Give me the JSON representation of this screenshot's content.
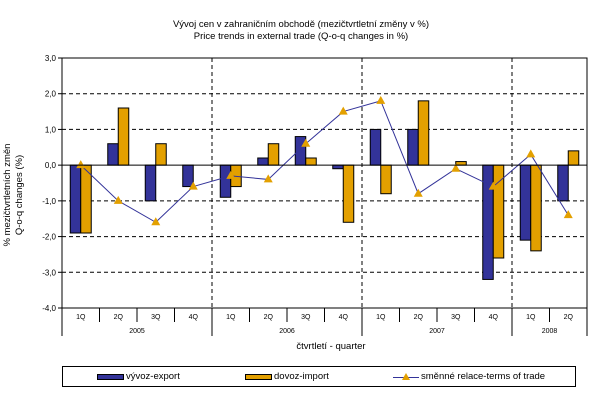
{
  "chart_data": {
    "type": "bar",
    "title": "Vývoj cen v zahraničním obchodě (mezičtvrtletní změny v %)",
    "subtitle": "Price trends in external trade (Q-o-q changes in %)",
    "ylabel_line1": "% mezičtvrtletních změn",
    "ylabel_line2": "Q-o-q changes (%)",
    "xlabel": "čtvrtletí - quarter",
    "ylim": [
      -4.0,
      3.0
    ],
    "yticks": [
      3.0,
      2.0,
      1.0,
      0.0,
      -1.0,
      -2.0,
      -3.0,
      -4.0
    ],
    "ytick_labels": [
      "3,0",
      "2,0",
      "1,0",
      "0,0",
      "-1,0",
      "-2,0",
      "-3,0",
      "-4,0"
    ],
    "grid": "horizontal dashed; vertical dashed year separators",
    "categories": [
      "1Q",
      "2Q",
      "3Q",
      "4Q",
      "1Q",
      "2Q",
      "3Q",
      "4Q",
      "1Q",
      "2Q",
      "3Q",
      "4Q",
      "1Q",
      "2Q"
    ],
    "groups": [
      {
        "label": "2005",
        "count": 4
      },
      {
        "label": "2006",
        "count": 4
      },
      {
        "label": "2007",
        "count": 4
      },
      {
        "label": "2008",
        "count": 2
      }
    ],
    "series": [
      {
        "name": "vývoz-export",
        "kind": "bar",
        "color": "#333399",
        "values": [
          -1.9,
          0.6,
          -1.0,
          -0.6,
          -0.9,
          0.2,
          0.8,
          -0.1,
          1.0,
          1.0,
          0.0,
          -3.2,
          -2.1,
          -1.0
        ]
      },
      {
        "name": "dovoz-import",
        "kind": "bar",
        "color": "#e3a000",
        "values": [
          -1.9,
          1.6,
          0.6,
          0.0,
          -0.6,
          0.6,
          0.2,
          -1.6,
          -0.8,
          1.8,
          0.1,
          -2.6,
          -2.4,
          0.4
        ]
      },
      {
        "name": "směnné relace-terms of trade",
        "kind": "line",
        "color": "#333399",
        "marker_color": "#e3a000",
        "marker": "triangle",
        "values": [
          0.0,
          -1.0,
          -1.6,
          -0.6,
          -0.3,
          -0.4,
          0.6,
          1.5,
          1.8,
          -0.8,
          -0.1,
          -0.6,
          0.3,
          -1.4
        ]
      }
    ],
    "legend_position": "bottom"
  }
}
